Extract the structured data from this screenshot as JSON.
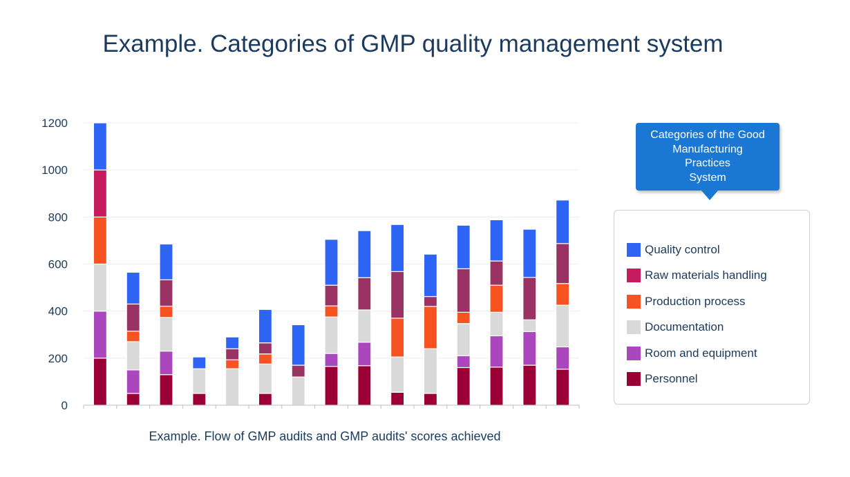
{
  "title": "Example. Categories of GMP quality management system",
  "subtitle": "Example. Flow of GMP audits and GMP audits' scores achieved",
  "callout": {
    "text": "Categories of the Good\nManufacturing\nPractices\nSystem"
  },
  "colors": {
    "quality_control": "#2f65f5",
    "raw_materials": "#c41c5d",
    "production": "#f55422",
    "documentation": "#d9d9d9",
    "room_equipment": "#ab47bc",
    "personnel": "#9a0036",
    "raw_materials_alt": "#993364"
  },
  "legend": [
    {
      "label": "Quality control",
      "color": "#2f65f5"
    },
    {
      "label": "Raw materials handling",
      "color": "#c41c5d"
    },
    {
      "label": "Production process",
      "color": "#f55422"
    },
    {
      "label": "Documentation",
      "color": "#d9d9d9"
    },
    {
      "label": "Room and equipment",
      "color": "#ab47bc"
    },
    {
      "label": "Personnel",
      "color": "#9a0036"
    }
  ],
  "chart_data": {
    "type": "bar",
    "stacked": true,
    "ylim": [
      0,
      1200
    ],
    "yticks": [
      0,
      200,
      400,
      600,
      800,
      1000,
      1200
    ],
    "grid": true,
    "legend_position": "right",
    "series": [
      {
        "name": "Personnel",
        "color": "#9a0036",
        "values": [
          200,
          50,
          130,
          50,
          0,
          50,
          0,
          165,
          168,
          55,
          50,
          160,
          162,
          170,
          153
        ]
      },
      {
        "name": "Room and equipment",
        "color": "#ab47bc",
        "values": [
          200,
          100,
          100,
          0,
          0,
          0,
          0,
          55,
          100,
          0,
          0,
          50,
          133,
          143,
          95
        ]
      },
      {
        "name": "Documentation",
        "color": "#d9d9d9",
        "values": [
          200,
          120,
          143,
          105,
          155,
          125,
          120,
          155,
          137,
          150,
          190,
          137,
          100,
          50,
          177
        ]
      },
      {
        "name": "Production process",
        "color": "#f55422",
        "values": [
          200,
          45,
          48,
          0,
          38,
          43,
          0,
          47,
          0,
          165,
          180,
          48,
          115,
          0,
          92
        ]
      },
      {
        "name": "Raw materials handling",
        "color": "#993364",
        "values": [
          200,
          115,
          112,
          0,
          47,
          47,
          50,
          88,
          137,
          198,
          42,
          185,
          103,
          180,
          170
        ],
        "first_color": "#c41c5d"
      },
      {
        "name": "Quality control",
        "color": "#2f65f5",
        "values": [
          200,
          135,
          152,
          50,
          50,
          142,
          172,
          195,
          200,
          200,
          180,
          185,
          175,
          205,
          185
        ]
      }
    ]
  }
}
